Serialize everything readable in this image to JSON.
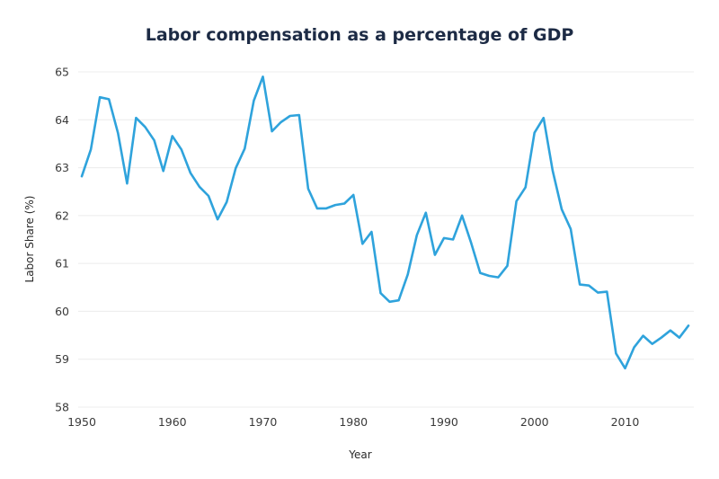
{
  "chart_data": {
    "type": "line",
    "title": "Labor compensation as a percentage of GDP",
    "xlabel": "Year",
    "ylabel": "Labor Share (%)",
    "xlim": [
      1950,
      2017
    ],
    "ylim": [
      58,
      65
    ],
    "x_ticks": [
      1950,
      1960,
      1970,
      1980,
      1990,
      2000,
      2010
    ],
    "y_ticks": [
      58,
      59,
      60,
      61,
      62,
      63,
      64,
      65
    ],
    "grid": "horizontal",
    "legend": "none",
    "line_color": "#2fa3dc",
    "series": [
      {
        "name": "Labor Share",
        "x": [
          1950,
          1951,
          1952,
          1953,
          1954,
          1955,
          1956,
          1957,
          1958,
          1959,
          1960,
          1961,
          1962,
          1963,
          1964,
          1965,
          1966,
          1967,
          1968,
          1969,
          1970,
          1971,
          1972,
          1973,
          1974,
          1975,
          1976,
          1977,
          1978,
          1979,
          1980,
          1981,
          1982,
          1983,
          1984,
          1985,
          1986,
          1987,
          1988,
          1989,
          1990,
          1991,
          1992,
          1993,
          1994,
          1995,
          1996,
          1997,
          1998,
          1999,
          2000,
          2001,
          2002,
          2003,
          2004,
          2005,
          2006,
          2007,
          2008,
          2009,
          2010,
          2011,
          2012,
          2013,
          2014,
          2015,
          2016,
          2017
        ],
        "values": [
          62.82,
          63.38,
          64.47,
          64.43,
          63.72,
          62.67,
          64.04,
          63.85,
          63.57,
          62.93,
          63.66,
          63.38,
          62.89,
          62.6,
          62.41,
          61.92,
          62.28,
          62.99,
          63.4,
          64.4,
          64.9,
          63.76,
          63.95,
          64.08,
          64.1,
          62.56,
          62.15,
          62.15,
          62.22,
          62.25,
          62.43,
          61.41,
          61.66,
          60.38,
          60.2,
          60.23,
          60.77,
          61.59,
          62.06,
          61.18,
          61.53,
          61.5,
          62.0,
          61.43,
          60.8,
          60.74,
          60.71,
          60.95,
          62.3,
          62.59,
          63.73,
          64.04,
          62.94,
          62.13,
          61.72,
          60.56,
          60.54,
          60.39,
          60.41,
          59.12,
          58.81,
          59.25,
          59.49,
          59.32,
          59.45,
          59.6,
          59.45,
          59.7
        ]
      }
    ]
  }
}
